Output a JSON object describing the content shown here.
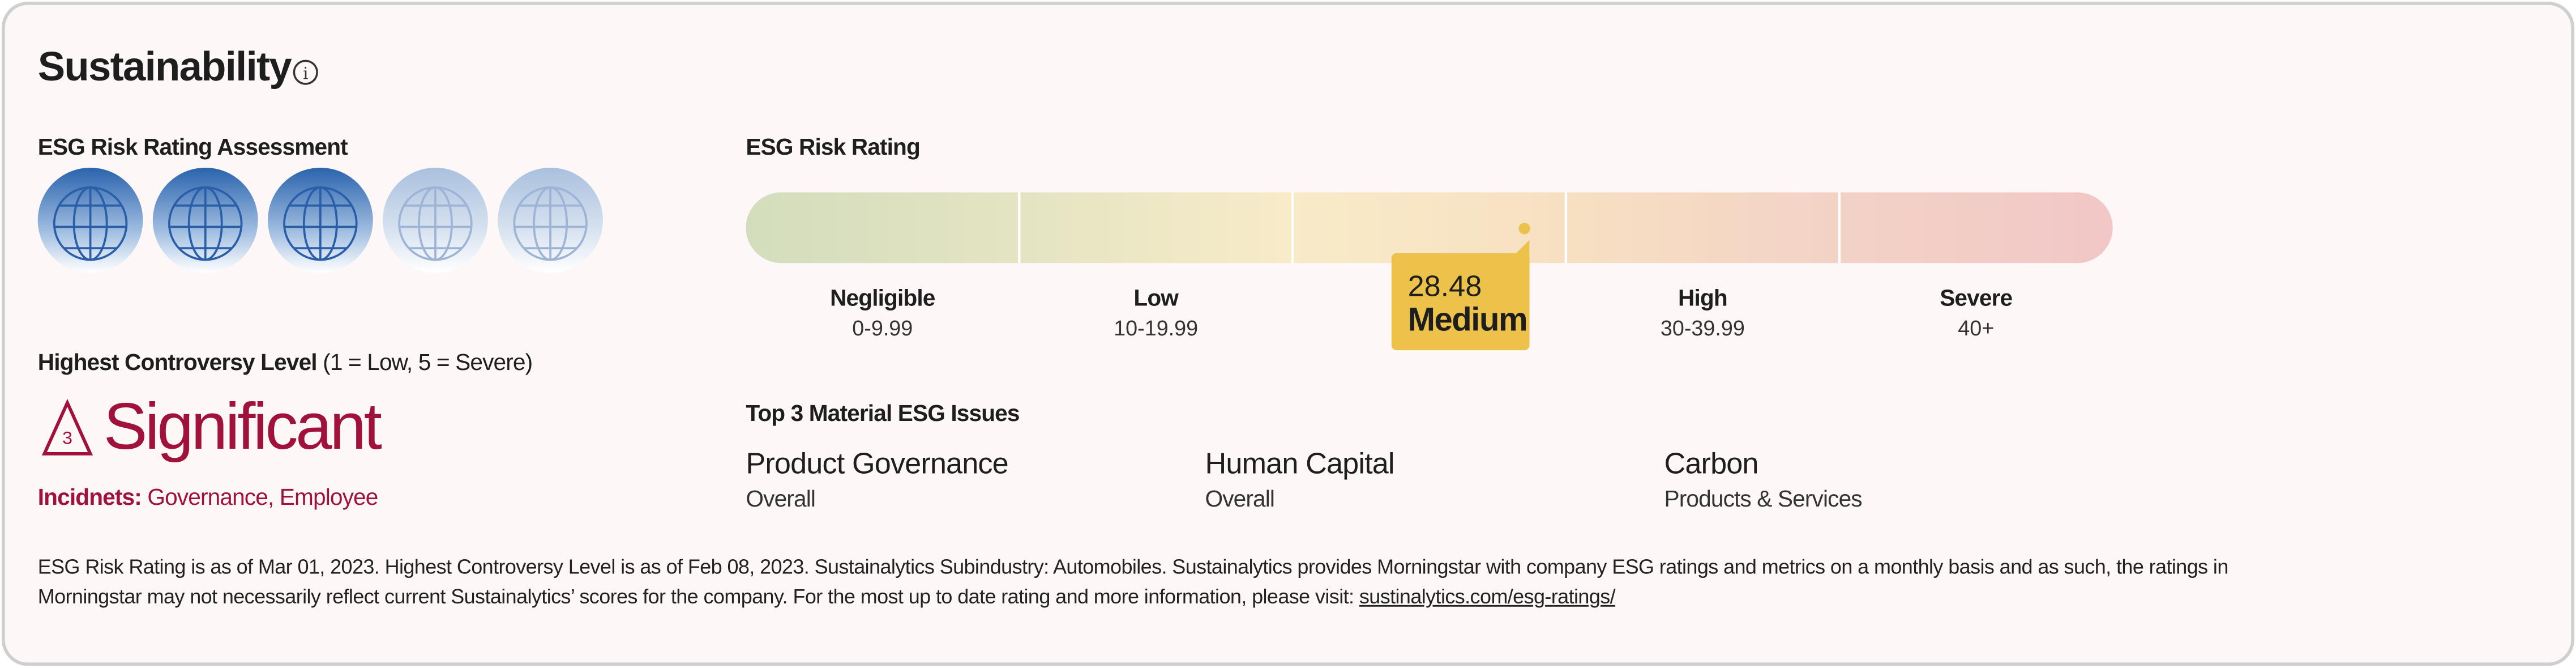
{
  "header": {
    "title": "Sustainability"
  },
  "assessment": {
    "title": "ESG Risk Rating Assessment",
    "globes_filled": 3,
    "globes_total": 5
  },
  "controversy": {
    "title": "Highest Controversy Level",
    "scale_note": "(1 = Low, 5 = Severe)",
    "level": 3,
    "label": "Significant",
    "incidents_label": "Incidnets:",
    "incidents": "Governance, Employee"
  },
  "rating": {
    "title": "ESG Risk Rating",
    "score": 28.48,
    "category": "Medium",
    "bands": [
      {
        "label": "Negligible",
        "range": "0-9.99"
      },
      {
        "label": "Low",
        "range": "10-19.99"
      },
      null,
      {
        "label": "High",
        "range": "30-39.99"
      },
      {
        "label": "Severe",
        "range": "40+"
      }
    ]
  },
  "issues": {
    "title": "Top 3 Material ESG Issues",
    "items": [
      {
        "name": "Product Governance",
        "scope": "Overall"
      },
      {
        "name": "Human Capital",
        "scope": "Overall"
      },
      {
        "name": "Carbon",
        "scope": "Products & Services"
      }
    ]
  },
  "footer": {
    "text": "ESG Risk Rating is as of Mar 01, 2023. Highest Controversy Level is as of Feb 08, 2023. Sustainalytics Subindustry: Automobiles. Sustainalytics provides Morningstar with company ESG ratings and metrics on a monthly basis and as such, the ratings in Morningstar may not necessarily reflect current Sustainalytics’ scores for the company. For the most up to date rating and more information, please visit:",
    "link": "sustinalytics.com/esg-ratings/"
  }
}
